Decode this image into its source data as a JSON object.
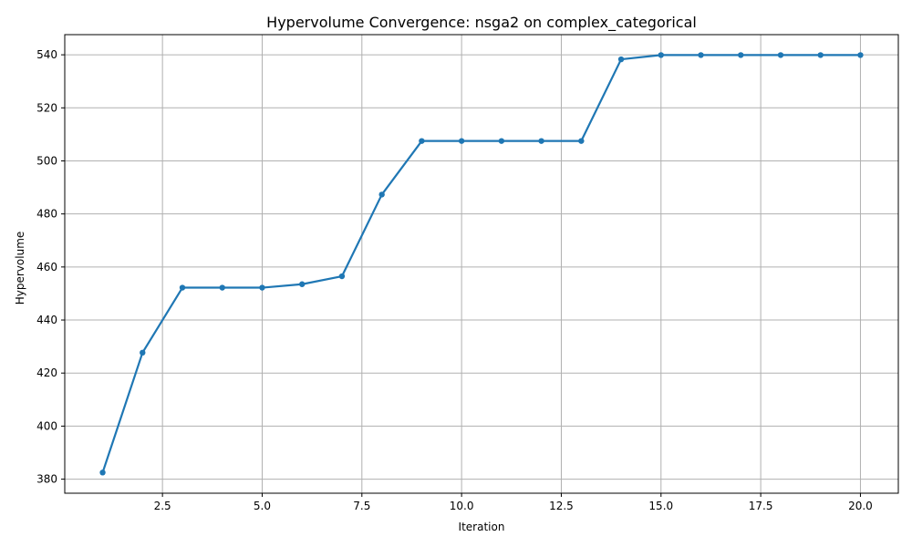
{
  "chart_data": {
    "type": "line",
    "title": "Hypervolume Convergence: nsga2 on complex_categorical",
    "xlabel": "Iteration",
    "ylabel": "Hypervolume",
    "xlim": [
      0.05,
      20.95
    ],
    "ylim": [
      374.7,
      547.6
    ],
    "xticks": [
      2.5,
      5.0,
      7.5,
      10.0,
      12.5,
      15.0,
      17.5,
      20.0
    ],
    "xtick_labels": [
      "2.5",
      "5.0",
      "7.5",
      "10.0",
      "12.5",
      "15.0",
      "17.5",
      "20.0"
    ],
    "yticks": [
      380,
      400,
      420,
      440,
      460,
      480,
      500,
      520,
      540
    ],
    "ytick_labels": [
      "380",
      "400",
      "420",
      "440",
      "460",
      "480",
      "500",
      "520",
      "540"
    ],
    "grid": true,
    "legend": "none",
    "series": [
      {
        "color": "#1f77b4",
        "x": [
          1,
          2,
          3,
          4,
          5,
          6,
          7,
          8,
          9,
          10,
          11,
          12,
          13,
          14,
          15,
          16,
          17,
          18,
          19,
          20
        ],
        "y": [
          382.5,
          427.7,
          452.2,
          452.2,
          452.2,
          453.5,
          456.5,
          487.3,
          507.5,
          507.5,
          507.5,
          507.5,
          507.5,
          538.3,
          539.9,
          539.9,
          539.9,
          539.9,
          539.9,
          539.9
        ]
      }
    ]
  }
}
